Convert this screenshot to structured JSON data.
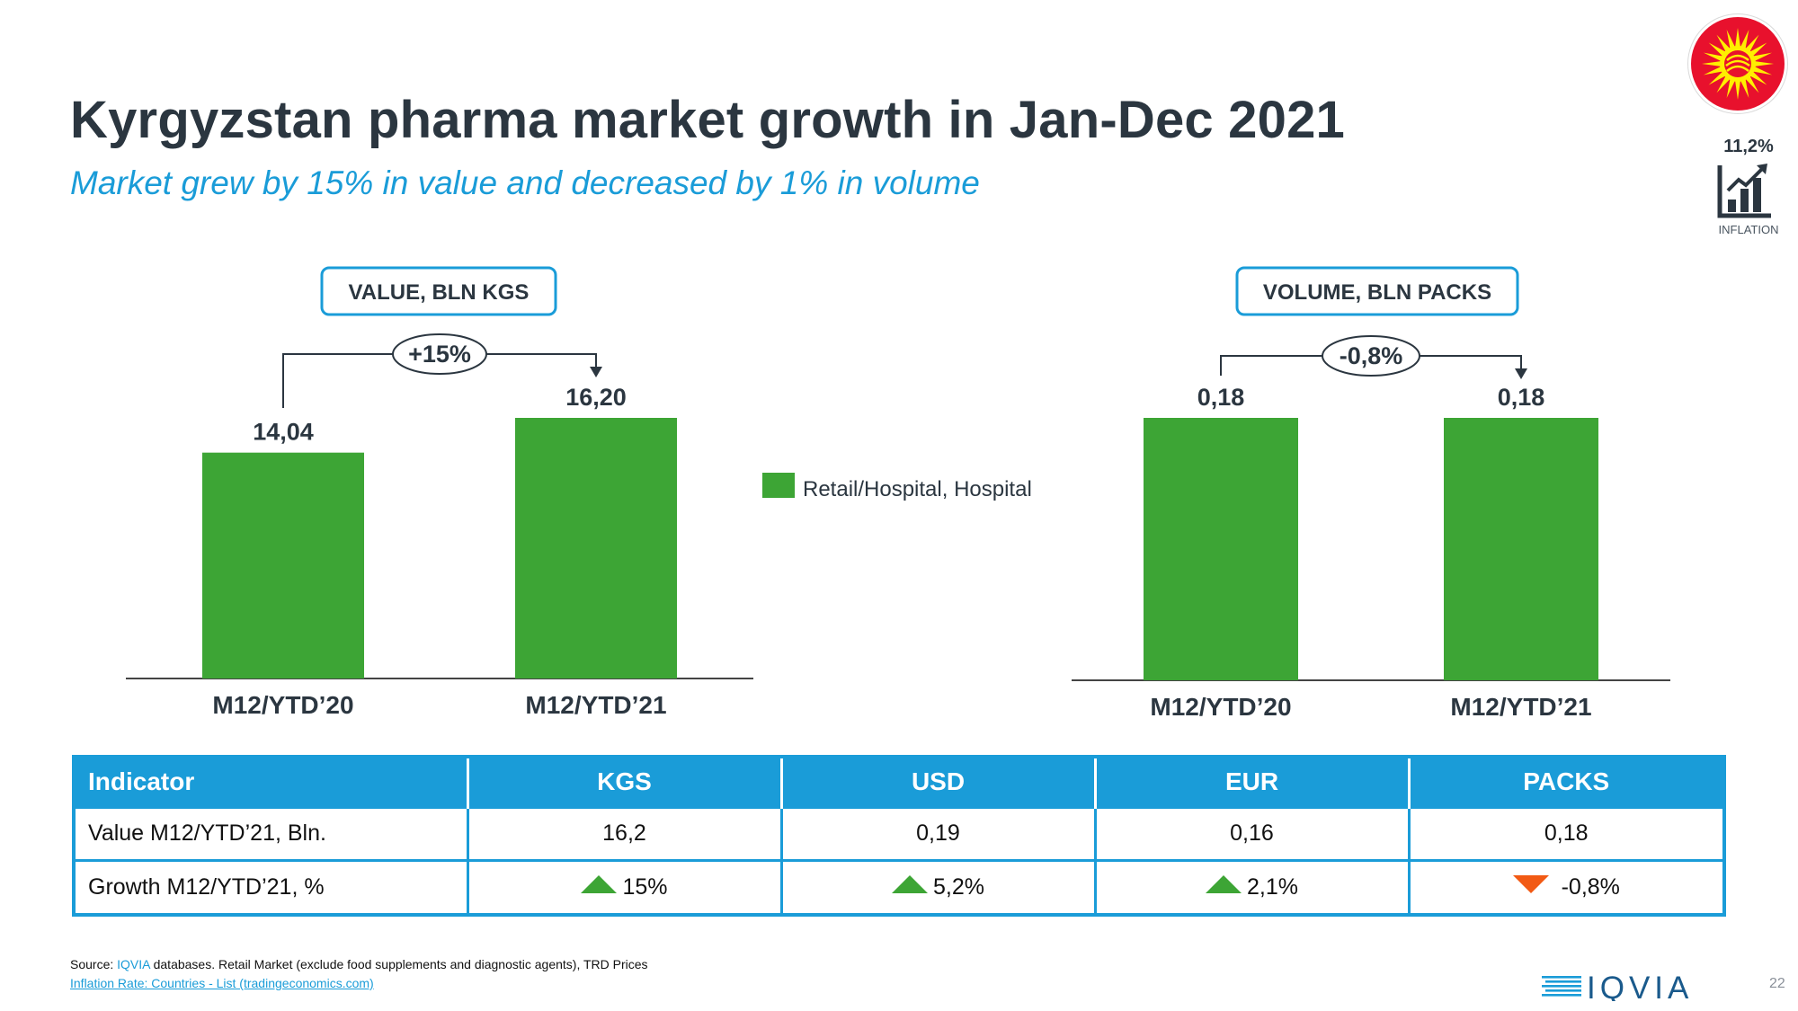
{
  "header": {
    "title": "Kyrgyzstan pharma market growth in Jan-Dec 2021",
    "subtitle": "Market grew by 15% in value and decreased by 1% in volume"
  },
  "flag_icon": "kyrgyzstan-flag-icon",
  "inflation": {
    "value": "11,2%",
    "label": "INFLATION",
    "icon": "bar-chart-growth-icon"
  },
  "colors": {
    "bar": "#3da535",
    "accent": "#1a9cd8",
    "title": "#2b3640",
    "down": "#f25a14"
  },
  "chart_data": [
    {
      "type": "bar",
      "title": "VALUE, BLN KGS",
      "categories": [
        "M12/YTD’20",
        "M12/YTD’21"
      ],
      "values": [
        14.04,
        16.2
      ],
      "value_labels": [
        "14,04",
        "16,20"
      ],
      "growth_label": "+15%",
      "legend": [
        "Retail/Hospital, Hospital"
      ],
      "legend_placement": "right"
    },
    {
      "type": "bar",
      "title": "VOLUME, BLN PACKS",
      "categories": [
        "M12/YTD’20",
        "M12/YTD’21"
      ],
      "values": [
        0.18,
        0.18
      ],
      "value_labels": [
        "0,18",
        "0,18"
      ],
      "growth_label": "-0,8%"
    }
  ],
  "table": {
    "headers": [
      "Indicator",
      "KGS",
      "USD",
      "EUR",
      "PACKS"
    ],
    "rows": [
      {
        "label": "Value  M12/YTD’21, Bln.",
        "cells": [
          "16,2",
          "0,19",
          "0,16",
          "0,18"
        ]
      },
      {
        "label": "Growth  M12/YTD’21, %",
        "cells": [
          "15%",
          "5,2%",
          "2,1%",
          "-0,8%"
        ],
        "trends": [
          "up",
          "up",
          "up",
          "down"
        ]
      }
    ]
  },
  "footer": {
    "source_prefix": "Source: ",
    "source_brand": "IQVIA",
    "source_rest": " databases. Retail Market (exclude food supplements and diagnostic agents), TRD Prices",
    "inflation_link": "Inflation Rate: Countries - List (tradingeconomics.com)",
    "logo_text": "IQVIA",
    "page_number": "22"
  }
}
